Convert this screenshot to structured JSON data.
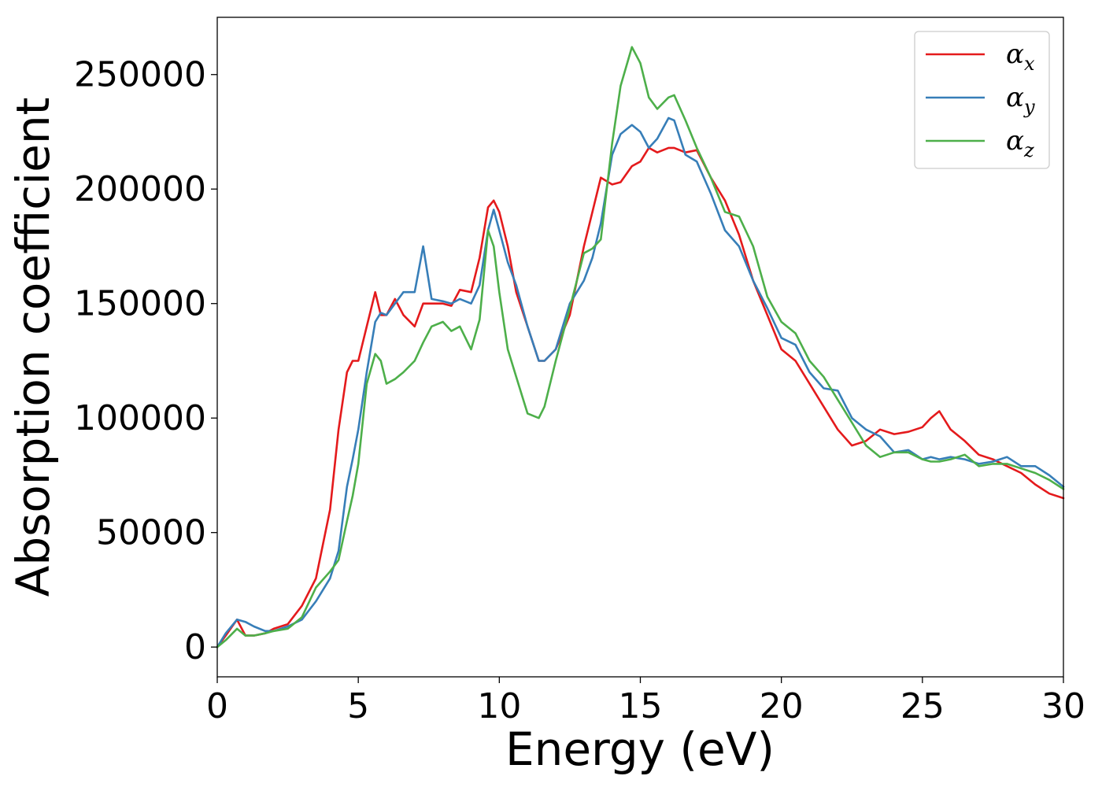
{
  "chart_data": {
    "type": "line",
    "xlabel": "Energy (eV)",
    "ylabel": "Absorption coefficient",
    "xlim": [
      0,
      30
    ],
    "ylim": [
      -13000,
      275000
    ],
    "xticks": [
      "0",
      "5",
      "10",
      "15",
      "20",
      "25",
      "30"
    ],
    "yticks": [
      "0",
      "50000",
      "100000",
      "150000",
      "200000",
      "250000"
    ],
    "grid": false,
    "legend_position": "top-right",
    "x": [
      0,
      0.3,
      0.7,
      1.0,
      1.3,
      1.7,
      2.0,
      2.5,
      3.0,
      3.5,
      4.0,
      4.3,
      4.6,
      4.8,
      5.0,
      5.3,
      5.6,
      5.8,
      6.0,
      6.3,
      6.6,
      7.0,
      7.3,
      7.6,
      8.0,
      8.3,
      8.6,
      9.0,
      9.3,
      9.6,
      9.8,
      10.0,
      10.3,
      10.6,
      11.0,
      11.4,
      11.6,
      12.0,
      12.5,
      13.0,
      13.3,
      13.6,
      14.0,
      14.3,
      14.7,
      15.0,
      15.3,
      15.6,
      16.0,
      16.2,
      16.6,
      17.0,
      17.5,
      18.0,
      18.5,
      19.0,
      19.5,
      20.0,
      20.5,
      21.0,
      21.5,
      22.0,
      22.5,
      23.0,
      23.5,
      24.0,
      24.5,
      25.0,
      25.3,
      25.6,
      26.0,
      26.5,
      27.0,
      27.5,
      28.0,
      28.5,
      29.0,
      29.5,
      30.0
    ],
    "series": [
      {
        "name": "α_x",
        "legend_base": "α",
        "legend_sub": "x",
        "color": "#e41a1c",
        "values": [
          0,
          5000,
          12000,
          5000,
          5000,
          6000,
          8000,
          10000,
          18000,
          30000,
          60000,
          95000,
          120000,
          125000,
          125000,
          140000,
          155000,
          145000,
          145000,
          152000,
          145000,
          140000,
          150000,
          150000,
          150000,
          149000,
          156000,
          155000,
          170000,
          192000,
          195000,
          190000,
          175000,
          155000,
          140000,
          125000,
          125000,
          130000,
          145000,
          175000,
          190000,
          205000,
          202000,
          203000,
          210000,
          212000,
          218000,
          216000,
          218000,
          218000,
          216000,
          217000,
          205000,
          195000,
          180000,
          160000,
          145000,
          130000,
          125000,
          115000,
          105000,
          95000,
          88000,
          90000,
          95000,
          93000,
          94000,
          96000,
          100000,
          103000,
          95000,
          90000,
          84000,
          82000,
          79000,
          76000,
          71000,
          67000,
          65000
        ]
      },
      {
        "name": "α_y",
        "legend_base": "α",
        "legend_sub": "y",
        "color": "#377eb8",
        "values": [
          0,
          6000,
          12000,
          11000,
          9000,
          7000,
          7000,
          9000,
          12000,
          20000,
          30000,
          42000,
          70000,
          82000,
          95000,
          120000,
          142000,
          146000,
          145000,
          150000,
          155000,
          155000,
          175000,
          152000,
          151000,
          150000,
          152000,
          150000,
          158000,
          182000,
          191000,
          182000,
          168000,
          158000,
          140000,
          125000,
          125000,
          130000,
          150000,
          160000,
          170000,
          185000,
          215000,
          224000,
          228000,
          225000,
          218000,
          222000,
          231000,
          230000,
          215000,
          212000,
          198000,
          182000,
          175000,
          160000,
          148000,
          135000,
          132000,
          120000,
          113000,
          112000,
          100000,
          95000,
          92000,
          85000,
          86000,
          82000,
          83000,
          82000,
          83000,
          82000,
          80000,
          81000,
          83000,
          79000,
          79000,
          75000,
          70000
        ]
      },
      {
        "name": "α_z",
        "legend_base": "α",
        "legend_sub": "z",
        "color": "#4daf4a",
        "values": [
          0,
          3000,
          8000,
          5000,
          5000,
          6000,
          7000,
          8000,
          13000,
          26000,
          33000,
          38000,
          55000,
          66000,
          80000,
          115000,
          128000,
          125000,
          115000,
          117000,
          120000,
          125000,
          133000,
          140000,
          142000,
          138000,
          140000,
          130000,
          143000,
          182000,
          175000,
          155000,
          130000,
          118000,
          102000,
          100000,
          105000,
          125000,
          148000,
          172000,
          174000,
          178000,
          220000,
          245000,
          262000,
          255000,
          240000,
          235000,
          240000,
          241000,
          230000,
          218000,
          205000,
          190000,
          188000,
          175000,
          153000,
          142000,
          137000,
          125000,
          118000,
          108000,
          98000,
          88000,
          83000,
          85000,
          85000,
          82000,
          81000,
          81000,
          82000,
          84000,
          79000,
          80000,
          80000,
          78000,
          76000,
          73000,
          69000
        ]
      }
    ]
  }
}
